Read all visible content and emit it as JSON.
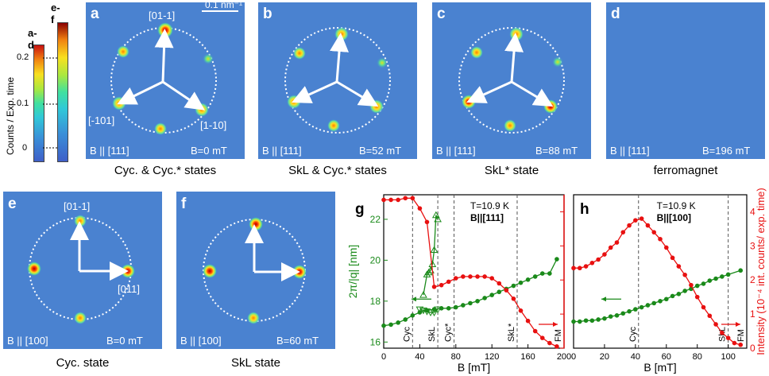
{
  "colorbar": {
    "label_ad": "a-d",
    "label_ef": "e-f",
    "axis_label": "Counts / Exp. time",
    "ticks": [
      "0.2",
      "0.1",
      "0"
    ]
  },
  "panels": [
    {
      "letter": "a",
      "field": "B || [111]",
      "bval": "B=0 mT",
      "caption": "Cyc. & Cyc.* states",
      "labels": {
        "top": "[01-1]",
        "left": "[-101]",
        "right": "[1-10]"
      },
      "scale": "0.1 nm⁻¹"
    },
    {
      "letter": "b",
      "field": "B || [111]",
      "bval": "B=52 mT",
      "caption": "SkL & Cyc.* states"
    },
    {
      "letter": "c",
      "field": "B || [111]",
      "bval": "B=88 mT",
      "caption": "SkL* state"
    },
    {
      "letter": "d",
      "field": "B || [111]",
      "bval": "B=196 mT",
      "caption": "ferromagnet"
    },
    {
      "letter": "e",
      "field": "B || [100]",
      "bval": "B=0 mT",
      "caption": "Cyc. state",
      "labels": {
        "top": "[01-1]",
        "right": "[011]"
      }
    },
    {
      "letter": "f",
      "field": "B || [100]",
      "bval": "B=60 mT",
      "caption": "SkL state"
    }
  ],
  "chart_data": [
    {
      "type": "line",
      "panel": "g",
      "annotation": "T=10.9 K",
      "annotation2": "B||[111]",
      "xlabel": "B [mT]",
      "ylabel_left": "2π/|q| [nm]",
      "ylabel_right": "Intensity (10⁻⁴ int. counts/ exp. time)",
      "xlim": [
        0,
        200
      ],
      "ylim_left": [
        15.7,
        23.2
      ],
      "ylim_right": [
        0,
        4.5
      ],
      "xticks": [
        0,
        40,
        80,
        120,
        160,
        200
      ],
      "yticks_left": [
        16,
        18,
        20,
        22
      ],
      "yticks_right": [
        0,
        1,
        2,
        3,
        4
      ],
      "phases": [
        "Cyc",
        "SkL",
        "Cyc*",
        "SkL*",
        "FM"
      ],
      "phase_boundaries": [
        32,
        60,
        78,
        148
      ],
      "series": [
        {
          "axis": "left",
          "marker": "circle",
          "x": [
            0,
            8,
            16,
            24,
            32,
            40,
            48,
            56,
            64,
            72,
            80,
            88,
            96,
            104,
            112,
            120,
            128,
            136,
            144,
            152,
            160,
            168,
            176,
            184,
            192
          ],
          "y": [
            16.8,
            16.85,
            16.95,
            17.1,
            17.3,
            17.45,
            17.55,
            17.6,
            17.65,
            17.65,
            17.7,
            17.8,
            17.9,
            18.0,
            18.15,
            18.3,
            18.45,
            18.6,
            18.75,
            18.9,
            19.05,
            19.2,
            19.35,
            19.35,
            20.05
          ]
        },
        {
          "axis": "left",
          "marker": "triangle",
          "x": [
            44,
            48,
            50,
            52,
            54,
            56,
            58,
            60
          ],
          "y": [
            18.3,
            19.3,
            19.4,
            19.5,
            19.8,
            20.5,
            22.2,
            22.0
          ]
        },
        {
          "axis": "left",
          "marker": "triangle-down",
          "x": [
            40,
            44,
            48,
            52,
            56,
            60
          ],
          "y": [
            17.6,
            17.55,
            17.5,
            17.45,
            17.45,
            17.6
          ]
        },
        {
          "axis": "right",
          "marker": "circle",
          "x": [
            0,
            8,
            16,
            24,
            32,
            40,
            48,
            56,
            64,
            72,
            80,
            88,
            96,
            104,
            112,
            120,
            128,
            136,
            144,
            152,
            160,
            168,
            176,
            184,
            192
          ],
          "y": [
            4.35,
            4.35,
            4.35,
            4.4,
            4.4,
            4.1,
            3.7,
            1.8,
            1.85,
            1.95,
            2.05,
            2.1,
            2.1,
            2.1,
            2.1,
            2.05,
            1.9,
            1.7,
            1.45,
            1.1,
            0.8,
            0.5,
            0.3,
            0.15,
            0.05
          ]
        }
      ]
    },
    {
      "type": "line",
      "panel": "h",
      "annotation": "T=10.9 K",
      "annotation2": "B||[100]",
      "xlabel": "B [mT]",
      "xlim": [
        0,
        112
      ],
      "ylim_left": [
        15.7,
        23.2
      ],
      "ylim_right": [
        0,
        4.5
      ],
      "xticks": [
        0,
        20,
        40,
        60,
        80,
        100
      ],
      "phases": [
        "Cyc",
        "SkL",
        "FM"
      ],
      "phase_boundaries": [
        42,
        100
      ],
      "series": [
        {
          "axis": "left",
          "marker": "circle",
          "x": [
            0,
            4,
            8,
            12,
            16,
            20,
            24,
            28,
            32,
            36,
            40,
            44,
            48,
            52,
            56,
            60,
            64,
            68,
            72,
            76,
            80,
            84,
            88,
            92,
            96,
            100,
            108
          ],
          "y": [
            17.0,
            17.0,
            17.05,
            17.05,
            17.1,
            17.15,
            17.25,
            17.3,
            17.4,
            17.5,
            17.6,
            17.7,
            17.8,
            17.9,
            18.0,
            18.1,
            18.25,
            18.35,
            18.5,
            18.6,
            18.75,
            18.85,
            19.0,
            19.1,
            19.2,
            19.3,
            19.5
          ]
        },
        {
          "axis": "right",
          "marker": "circle",
          "x": [
            0,
            4,
            8,
            12,
            16,
            20,
            24,
            28,
            32,
            36,
            40,
            44,
            48,
            52,
            56,
            60,
            64,
            68,
            72,
            76,
            80,
            84,
            88,
            92,
            96,
            100,
            104,
            108
          ],
          "y": [
            2.35,
            2.35,
            2.4,
            2.5,
            2.6,
            2.75,
            2.95,
            3.1,
            3.4,
            3.6,
            3.75,
            3.8,
            3.6,
            3.4,
            3.2,
            2.95,
            2.65,
            2.4,
            2.15,
            1.85,
            1.5,
            1.2,
            0.95,
            0.7,
            0.45,
            0.3,
            0.15,
            0.1
          ]
        }
      ]
    }
  ]
}
